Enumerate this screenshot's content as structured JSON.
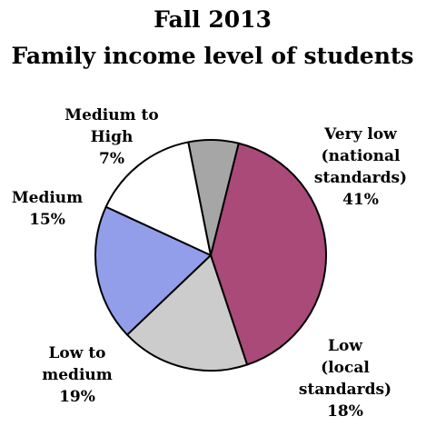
{
  "chart_data": {
    "type": "pie",
    "title": [
      "Fall 2013",
      "Family income level of students"
    ],
    "slices": [
      {
        "label": [
          "Very low",
          "(national",
          "standards)"
        ],
        "value": 41,
        "value_label": "41%",
        "color": "#A94A78"
      },
      {
        "label": [
          "Low",
          "(local",
          "standards)"
        ],
        "value": 18,
        "value_label": "18%",
        "color": "#CCCCCC"
      },
      {
        "label": [
          "Low to",
          "medium"
        ],
        "value": 19,
        "value_label": "19%",
        "color": "#939EEB"
      },
      {
        "label": [
          "Medium"
        ],
        "value": 15,
        "value_label": "15%",
        "color": "#FFFFFF"
      },
      {
        "label": [
          "Medium to",
          "High"
        ],
        "value": 7,
        "value_label": "7%",
        "color": "#A6A6A6"
      }
    ],
    "legend": "none",
    "outline_color": "#000000"
  }
}
